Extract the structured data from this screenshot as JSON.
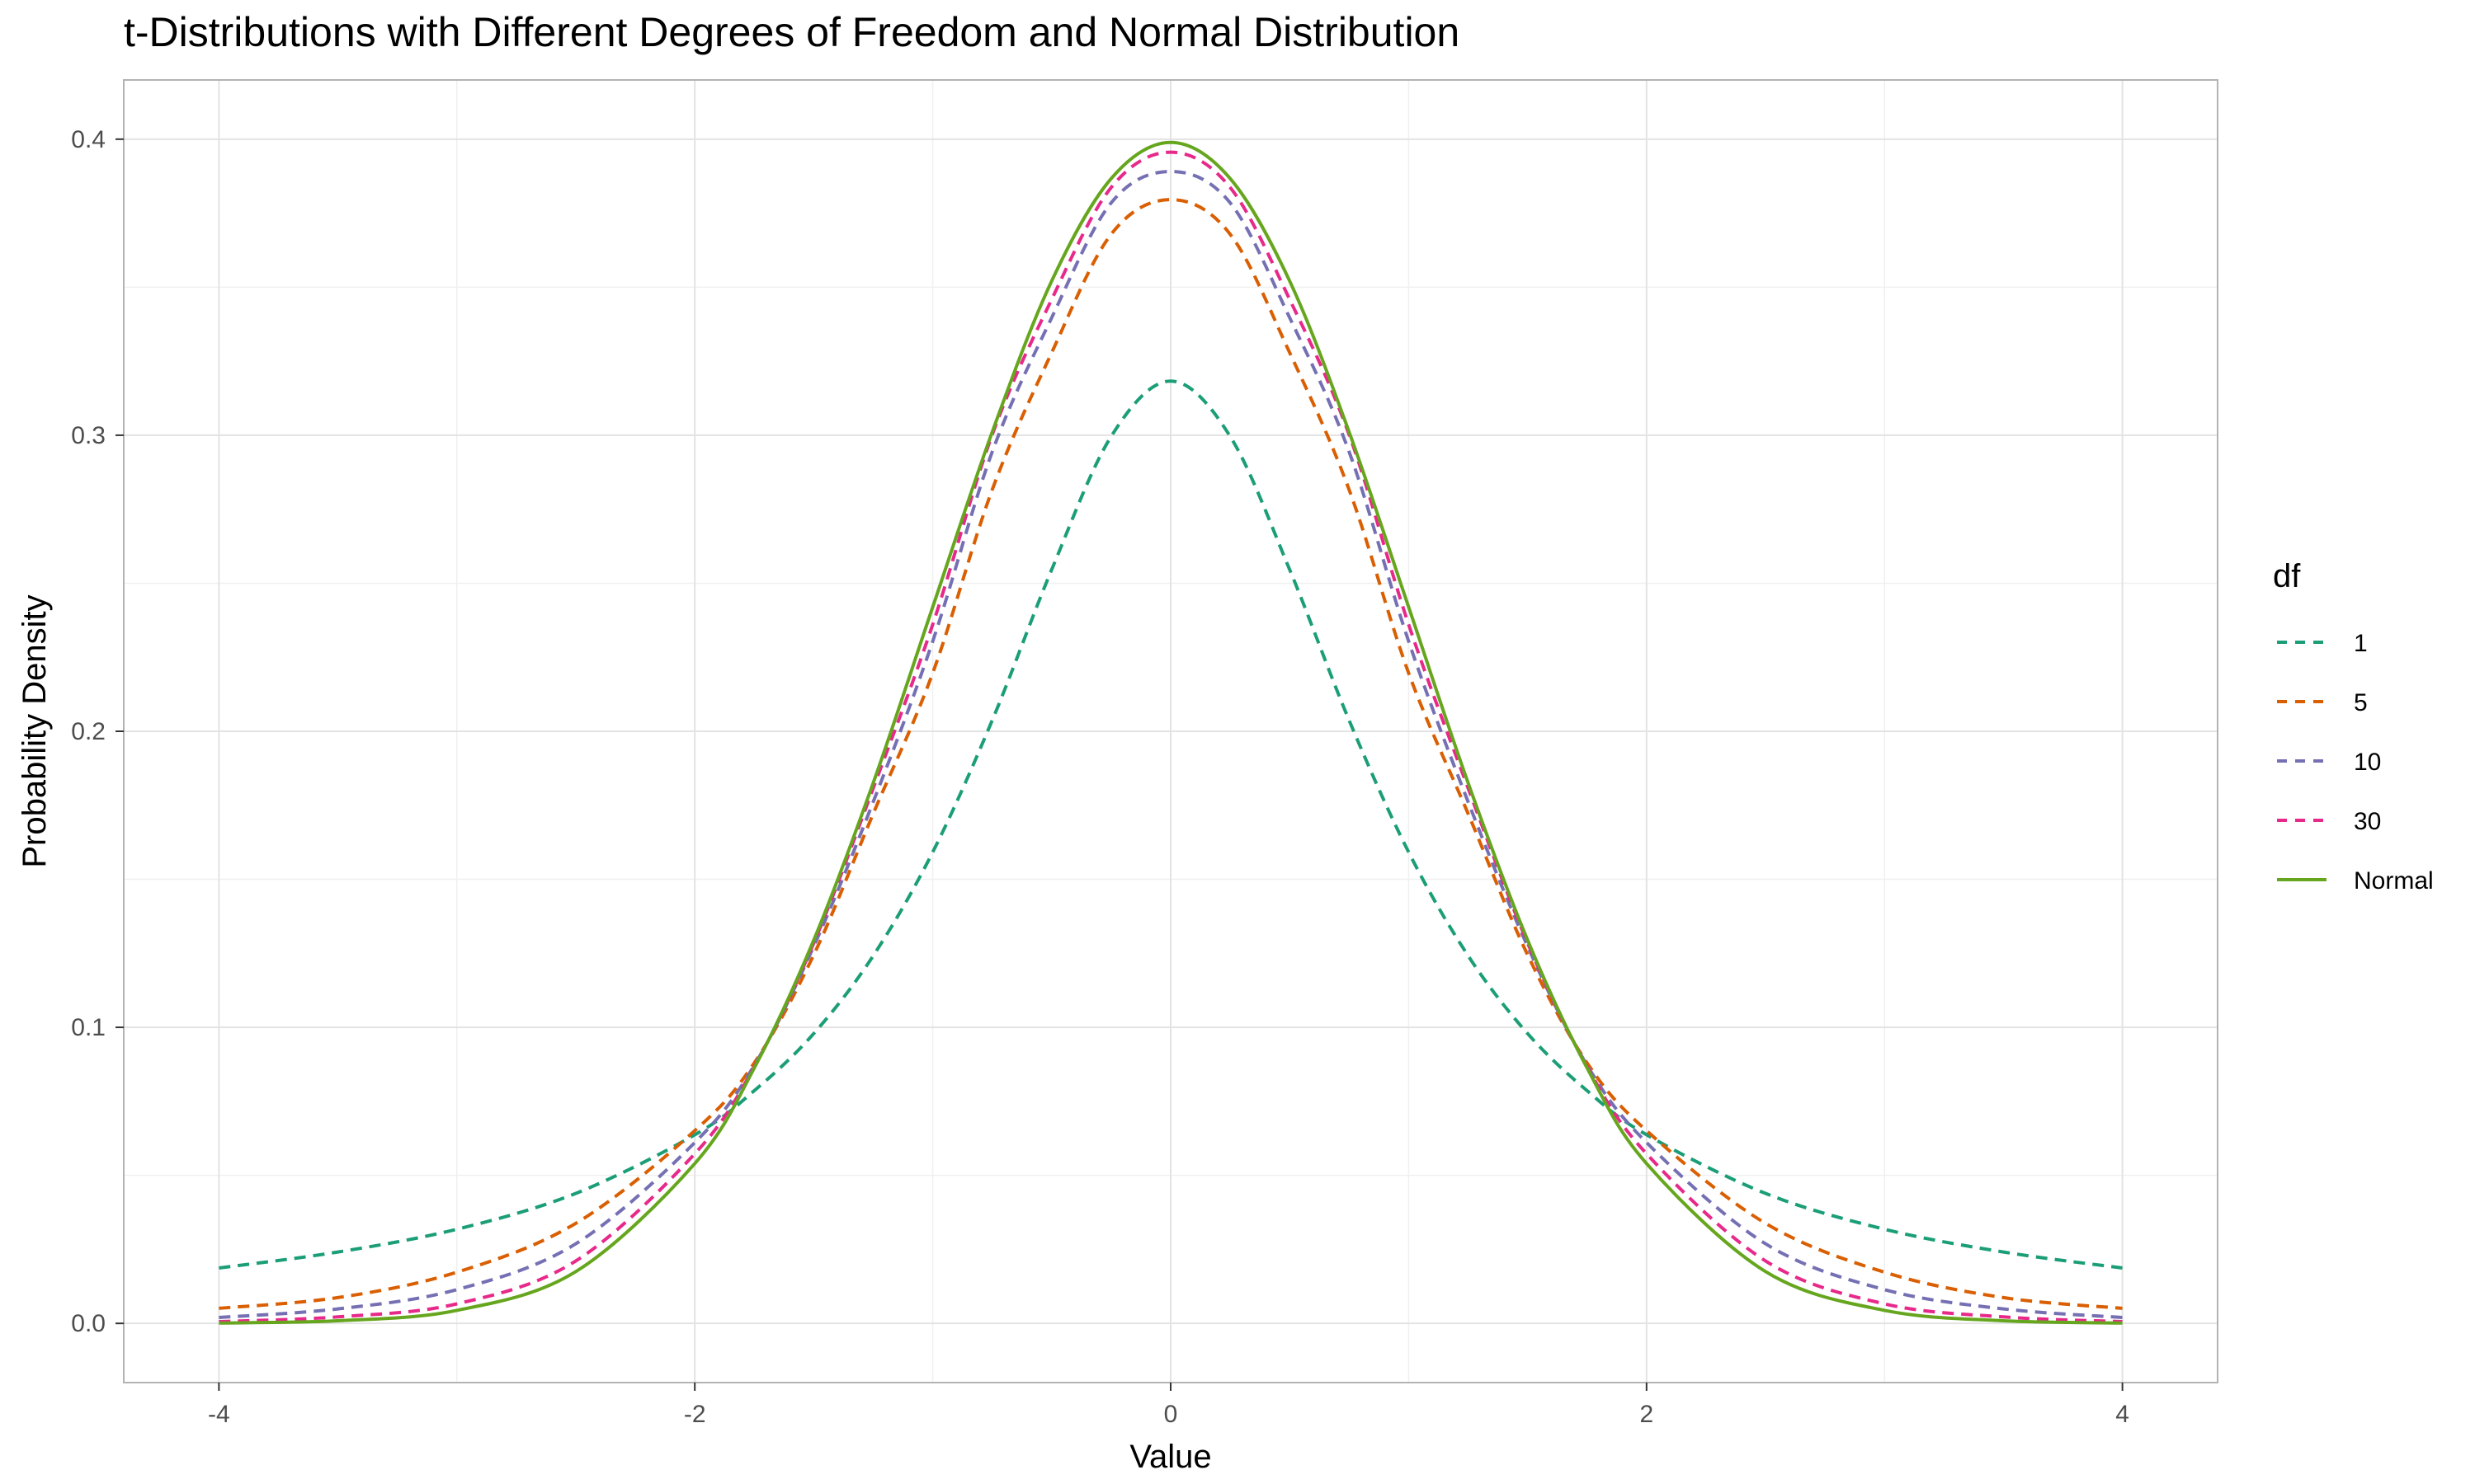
{
  "chart_data": {
    "type": "line",
    "title": "t-Distributions with Different Degrees of Freedom and Normal Distribution",
    "xlabel": "Value",
    "ylabel": "Probability Density",
    "xlim": [
      -4.4,
      4.4
    ],
    "ylim": [
      -0.02,
      0.42
    ],
    "x_ticks": [
      -4,
      -2,
      0,
      2,
      4
    ],
    "x_tick_labels": [
      "-4",
      "-2",
      "0",
      "2",
      "4"
    ],
    "y_ticks": [
      0.0,
      0.1,
      0.2,
      0.3,
      0.4
    ],
    "y_tick_labels": [
      "0.0",
      "0.1",
      "0.2",
      "0.3",
      "0.4"
    ],
    "grid": true,
    "legend_title": "df",
    "legend_position": "right",
    "x": [
      -4,
      -3.5,
      -3,
      -2.5,
      -2,
      -1.75,
      -1.5,
      -1.25,
      -1,
      -0.75,
      -0.5,
      -0.25,
      0,
      0.25,
      0.5,
      0.75,
      1,
      1.25,
      1.5,
      1.75,
      2,
      2.5,
      3,
      3.5,
      4
    ],
    "series": [
      {
        "name": "1",
        "color": "#1b9e77",
        "dash": "dashed",
        "values": [
          0.0187,
          0.0241,
          0.0318,
          0.0439,
          0.0637,
          0.0786,
          0.0979,
          0.1242,
          0.1592,
          0.2037,
          0.2546,
          0.2996,
          0.3183,
          0.2996,
          0.2546,
          0.2037,
          0.1592,
          0.1242,
          0.0979,
          0.0786,
          0.0637,
          0.0439,
          0.0318,
          0.0241,
          0.0187
        ]
      },
      {
        "name": "5",
        "color": "#d95f02",
        "dash": "dashed",
        "values": [
          0.0051,
          0.0087,
          0.0173,
          0.0338,
          0.0651,
          0.088,
          0.1245,
          0.1722,
          0.2197,
          0.2816,
          0.3279,
          0.3679,
          0.3796,
          0.3679,
          0.3279,
          0.2816,
          0.2197,
          0.1722,
          0.1245,
          0.088,
          0.0651,
          0.0338,
          0.0173,
          0.0087,
          0.0051
        ]
      },
      {
        "name": "10",
        "color": "#7570b3",
        "dash": "dashed",
        "values": [
          0.002,
          0.0049,
          0.0114,
          0.0269,
          0.0611,
          0.0872,
          0.1274,
          0.1762,
          0.2304,
          0.2944,
          0.3397,
          0.3785,
          0.3891,
          0.3785,
          0.3397,
          0.2944,
          0.2304,
          0.1762,
          0.1274,
          0.0872,
          0.0611,
          0.0269,
          0.0114,
          0.0049,
          0.002
        ]
      },
      {
        "name": "30",
        "color": "#e7298a",
        "dash": "dashed",
        "values": [
          0.0006,
          0.0022,
          0.0066,
          0.0211,
          0.0573,
          0.0867,
          0.1285,
          0.1808,
          0.2361,
          0.3002,
          0.3459,
          0.3837,
          0.3956,
          0.3837,
          0.3459,
          0.3002,
          0.2361,
          0.1808,
          0.1285,
          0.0867,
          0.0573,
          0.0211,
          0.0066,
          0.0022,
          0.0006
        ]
      },
      {
        "name": "Normal",
        "color": "#66a61e",
        "dash": "solid",
        "values": [
          0.0001,
          0.0009,
          0.0044,
          0.0175,
          0.054,
          0.0863,
          0.1295,
          0.1826,
          0.242,
          0.3011,
          0.3521,
          0.3867,
          0.3989,
          0.3867,
          0.3521,
          0.3011,
          0.242,
          0.1826,
          0.1295,
          0.0863,
          0.054,
          0.0175,
          0.0044,
          0.0009,
          0.0001
        ]
      }
    ]
  }
}
